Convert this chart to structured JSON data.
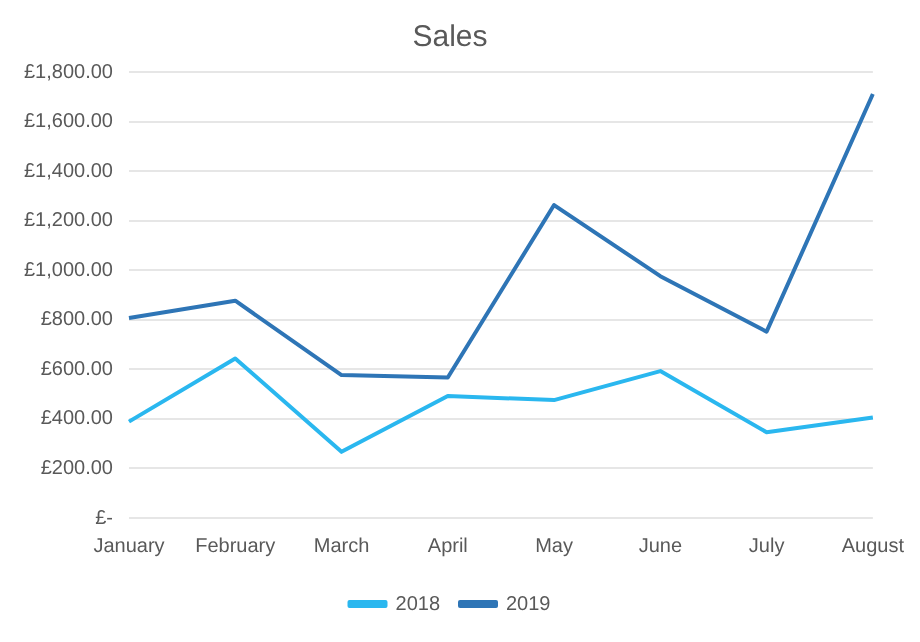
{
  "chart_data": {
    "type": "line",
    "title": "Sales",
    "categories": [
      "January",
      "February",
      "March",
      "April",
      "May",
      "June",
      "July",
      "August"
    ],
    "series": [
      {
        "name": "2018",
        "color": "#2ab7ef",
        "values": [
          389,
          644,
          267,
          492,
          476,
          593,
          346,
          406
        ]
      },
      {
        "name": "2019",
        "color": "#2e75b6",
        "values": [
          807,
          877,
          577,
          567,
          1263,
          976,
          752,
          1711
        ]
      }
    ],
    "ylim": [
      0,
      1800
    ],
    "yticks": [
      {
        "value": 0,
        "label": "£-"
      },
      {
        "value": 200,
        "label": "£200.00"
      },
      {
        "value": 400,
        "label": "£400.00"
      },
      {
        "value": 600,
        "label": "£600.00"
      },
      {
        "value": 800,
        "label": "£800.00"
      },
      {
        "value": 1000,
        "label": "£1,000.00"
      },
      {
        "value": 1200,
        "label": "£1,200.00"
      },
      {
        "value": 1400,
        "label": "£1,400.00"
      },
      {
        "value": 1600,
        "label": "£1,600.00"
      },
      {
        "value": 1800,
        "label": "£1,800.00"
      }
    ],
    "grid": "y",
    "legend": "bottom",
    "marker": "none",
    "line_style": "solid"
  }
}
